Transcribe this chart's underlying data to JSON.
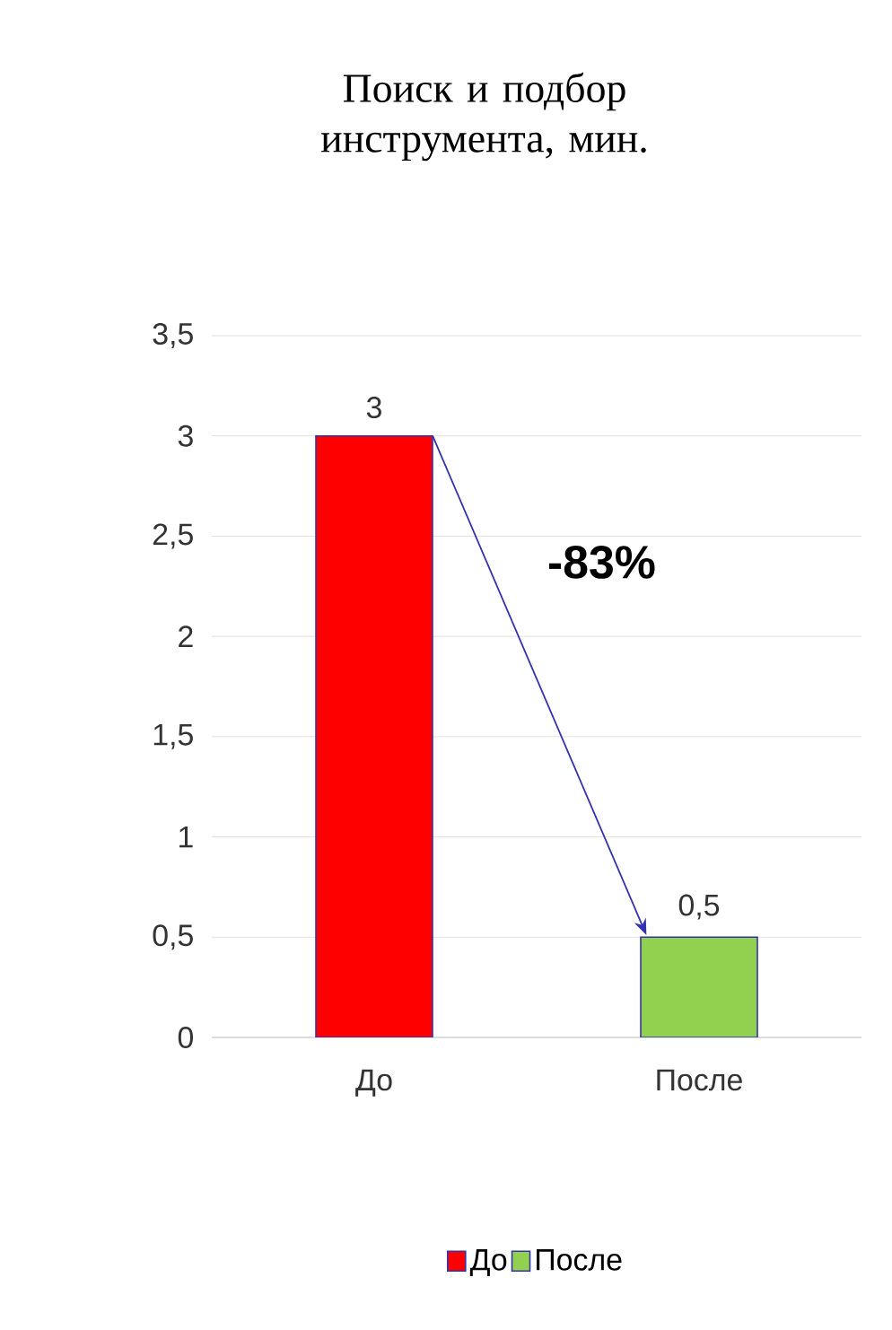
{
  "chart_data": {
    "type": "bar",
    "title": "Поиск и подбор инструмента, мин.",
    "categories": [
      "До",
      "После"
    ],
    "series": [
      {
        "name": "До",
        "color": "#ff0000",
        "values": [
          3,
          null
        ],
        "value_labels": [
          "3",
          null
        ]
      },
      {
        "name": "После",
        "color": "#92d050",
        "values": [
          null,
          0.5
        ],
        "value_labels": [
          null,
          "0,5"
        ]
      }
    ],
    "ylim": [
      0,
      3.5
    ],
    "yticks": [
      0,
      {
        "value": 0.5,
        "label": "0,5"
      },
      1,
      {
        "value": 1.5,
        "label": "1,5"
      },
      2,
      {
        "value": 2.5,
        "label": "2,5"
      },
      3,
      {
        "value": 3.5,
        "label": "3,5"
      }
    ],
    "grid": "y",
    "legend": "bottom",
    "annotations": [
      "-83%"
    ]
  }
}
